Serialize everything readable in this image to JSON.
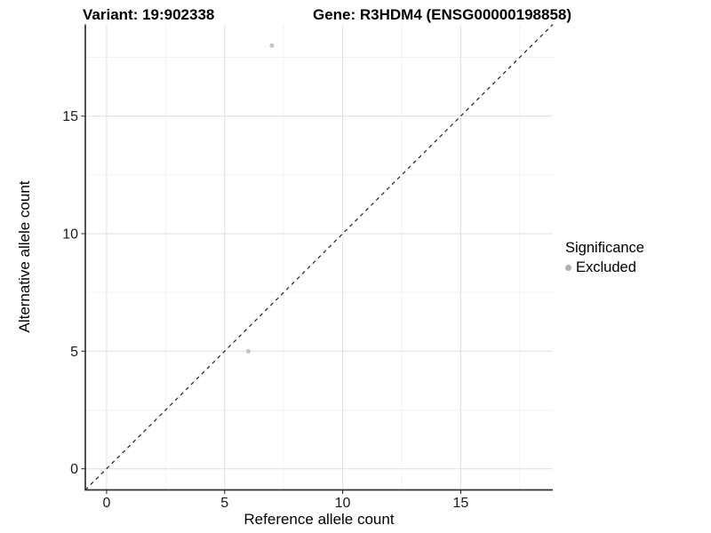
{
  "chart_data": {
    "type": "scatter",
    "title_left": "Variant: 19:902338",
    "title_right": "Gene: R3HDM4 (ENSG00000198858)",
    "xlabel": "Reference allele count",
    "ylabel": "Alternative allele count",
    "xlim": [
      -0.9,
      18.9
    ],
    "ylim": [
      -0.9,
      18.9
    ],
    "xticks": [
      0,
      5,
      10,
      15
    ],
    "yticks": [
      0,
      5,
      10,
      15
    ],
    "xminor": [
      2.5,
      7.5,
      12.5,
      17.5
    ],
    "yminor": [
      2.5,
      7.5,
      12.5,
      17.5
    ],
    "grid": "white panel, light-gray major and minor gridlines, axis lines left and bottom only",
    "series": [
      {
        "name": "Excluded",
        "color": "#c6c6c6",
        "points": [
          {
            "x": 7,
            "y": 18
          },
          {
            "x": 6,
            "y": 5
          }
        ]
      }
    ],
    "reference_line": {
      "type": "identity",
      "slope": 1,
      "intercept": 0,
      "style": "dashed",
      "color": "#1f1f1f"
    },
    "legend": {
      "title": "Significance",
      "position": "right",
      "entries": [
        {
          "label": "Excluded",
          "marker": "circle",
          "color": "#b0b0b0"
        }
      ]
    },
    "colors": {
      "background": "#ffffff",
      "major_grid": "#e3e3e3",
      "minor_grid": "#f0f0f0",
      "axis_line": "#333333",
      "tick_label": "#1b1b1b",
      "point": "#c6c6c6"
    }
  }
}
